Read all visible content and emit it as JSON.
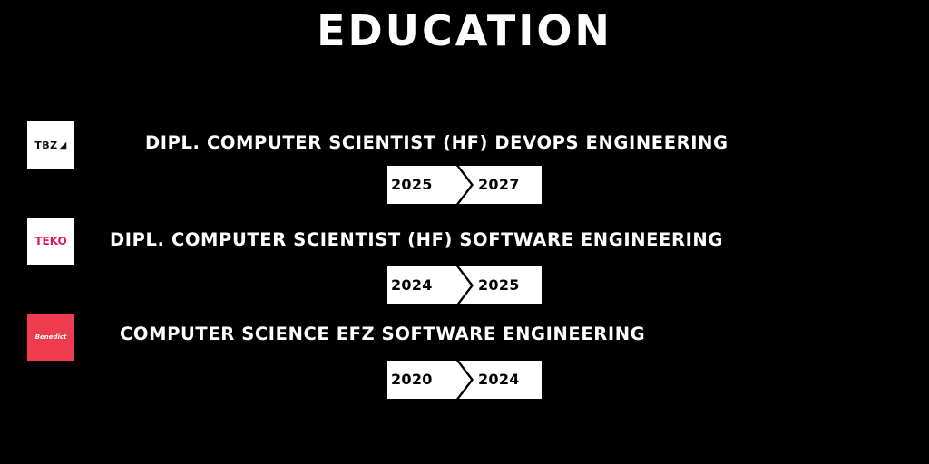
{
  "title": "EDUCATION",
  "entries": [
    {
      "logo_text": "TBZ",
      "degree": "DIPL. COMPUTER SCIENTIST (HF) DEVOPS ENGINEERING",
      "start": "2025",
      "end": "2027"
    },
    {
      "logo_text": "TEKO",
      "degree": "DIPL. COMPUTER SCIENTIST (HF) SOFTWARE ENGINEERING",
      "start": "2024",
      "end": "2025"
    },
    {
      "logo_text": "Benedict",
      "degree": "COMPUTER SCIENCE EFZ SOFTWARE ENGINEERING",
      "start": "2020",
      "end": "2024"
    }
  ],
  "colors": {
    "background": "#000000",
    "text": "#ffffff",
    "teko_brand": "#e1145a",
    "benedict_brand": "#ee3b4f"
  }
}
